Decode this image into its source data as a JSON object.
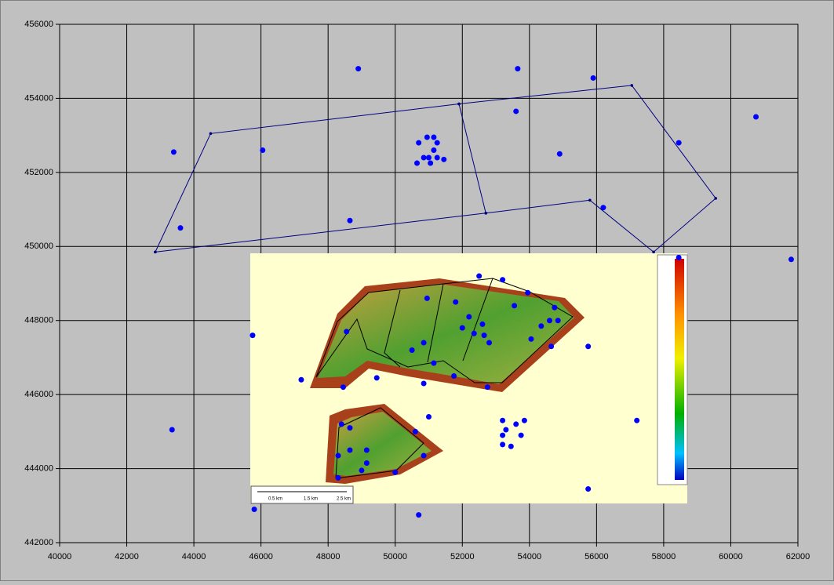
{
  "chart_data": {
    "type": "scatter",
    "xlim": [
      40000,
      62000
    ],
    "ylim": [
      442000,
      456000
    ],
    "xticks": [
      40000,
      42000,
      44000,
      46000,
      48000,
      50000,
      52000,
      54000,
      56000,
      58000,
      60000,
      62000
    ],
    "yticks": [
      442000,
      444000,
      446000,
      448000,
      450000,
      452000,
      454000,
      456000
    ],
    "grid": true,
    "inset_labels": [
      "0.5 km",
      "1.5 km",
      "2.5 km"
    ],
    "series": [
      {
        "type": "scatter",
        "color": "#0000ff",
        "x": [
          48900,
          53650,
          55900,
          43400,
          46050,
          53600,
          54900,
          58450,
          60750,
          43600,
          48650,
          56200,
          61800,
          50950,
          51150,
          50700,
          51250,
          51150,
          51000,
          51250,
          50850,
          51450,
          50650,
          51050,
          45750,
          47200,
          48550,
          48450,
          49450,
          50500,
          50850,
          50950,
          51150,
          50850,
          51800,
          51750,
          52500,
          53200,
          53550,
          53950,
          52750,
          52200,
          52000,
          52600,
          52350,
          52650,
          52800,
          54600,
          54750,
          54850,
          54350,
          54050,
          54650,
          55750,
          58450,
          57200,
          51000,
          50600,
          50850,
          50000,
          50700,
          45800,
          43350,
          55750,
          48400,
          48300,
          48650,
          48650,
          49150,
          49150,
          49000,
          48300,
          53200,
          53300,
          53200,
          53200,
          53450,
          53600,
          53750,
          53850
        ],
        "y": [
          454800,
          454800,
          454550,
          452550,
          452600,
          453650,
          452500,
          452800,
          453500,
          450500,
          450700,
          451050,
          449650,
          452950,
          452950,
          452800,
          452800,
          452600,
          452400,
          452400,
          452400,
          452350,
          452250,
          452250,
          447600,
          446400,
          447700,
          446200,
          446450,
          447200,
          447400,
          448600,
          446850,
          446300,
          448500,
          446500,
          449200,
          449100,
          448400,
          448750,
          446200,
          448100,
          447800,
          447900,
          447650,
          447600,
          447400,
          448000,
          448350,
          448000,
          447850,
          447500,
          447300,
          447300,
          449700,
          445300,
          445400,
          445000,
          444350,
          443900,
          442750,
          442900,
          445050,
          443450,
          445200,
          444350,
          445100,
          444500,
          444500,
          444150,
          443950,
          443750,
          445300,
          445050,
          444900,
          444650,
          444600,
          445200,
          444900,
          445300
        ]
      },
      {
        "type": "line",
        "color": "#000080",
        "x": [
          42850,
          44500,
          51900,
          57050,
          59550,
          57700,
          55800,
          52700,
          42850,
          null,
          51900,
          52700
        ],
        "y": [
          449850,
          453050,
          453850,
          454350,
          451300,
          449850,
          451250,
          450900,
          449850,
          null,
          453850,
          450900
        ]
      }
    ]
  }
}
